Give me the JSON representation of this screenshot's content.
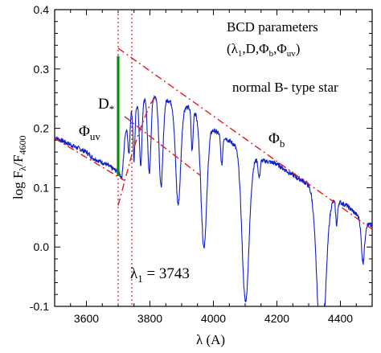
{
  "chart_data": {
    "type": "line",
    "title": "",
    "xlabel_symbol": "λ",
    "xlabel_unit": "(A)",
    "ylabel_text": "log F",
    "ylabel_sub1": "λ",
    "ylabel_mid": "/F",
    "ylabel_sub2": "4600",
    "xlim": [
      3500,
      4500
    ],
    "ylim": [
      -0.1,
      0.4
    ],
    "xticks": [
      3600,
      3800,
      4000,
      4200,
      4400
    ],
    "xtick_minor_step": 50,
    "yticks": [
      -0.1,
      0.0,
      0.1,
      0.2,
      0.3,
      0.4
    ],
    "ytick_minor_step": 0.02,
    "ytick_labels": [
      "-0.1",
      "0.0",
      "0.1",
      "0.2",
      "0.3",
      "0.4"
    ],
    "colors": {
      "spectrum": "#1020c8",
      "fit": "#e41a1c",
      "marker": "#d42020",
      "jump": "#108a10",
      "axis": "#000000"
    },
    "series": [
      {
        "role": "spectrum",
        "x": [
          3500,
          3520,
          3540,
          3560,
          3580,
          3600,
          3620,
          3640,
          3660,
          3680,
          3695,
          3705,
          3712,
          3722,
          3740,
          3760,
          3780,
          3800,
          3820,
          3840,
          3860,
          3880,
          3900,
          3920,
          3940,
          3960,
          3980,
          4000,
          4020,
          4040,
          4060,
          4080,
          4100,
          4120,
          4140,
          4160,
          4180,
          4200,
          4220,
          4240,
          4260,
          4280,
          4300,
          4320,
          4340,
          4360,
          4380,
          4400,
          4420,
          4440,
          4460,
          4480,
          4500
        ],
        "y": [
          0.185,
          0.18,
          0.175,
          0.17,
          0.165,
          0.16,
          0.15,
          0.145,
          0.14,
          0.133,
          0.128,
          0.123,
          0.115,
          0.19,
          0.23,
          0.24,
          0.25,
          0.255,
          0.255,
          0.25,
          0.247,
          0.243,
          0.24,
          0.235,
          0.23,
          0.215,
          0.205,
          0.197,
          0.19,
          0.183,
          0.175,
          0.17,
          0.158,
          0.152,
          0.147,
          0.145,
          0.143,
          0.14,
          0.132,
          0.125,
          0.118,
          0.112,
          0.105,
          0.095,
          0.09,
          0.085,
          0.08,
          0.075,
          0.07,
          0.06,
          0.05,
          0.04,
          0.035
        ]
      },
      {
        "role": "absorption-lines",
        "lines": [
          {
            "x": 3734,
            "depth": 0.06,
            "width": 3
          },
          {
            "x": 3750,
            "depth": 0.09,
            "width": 3
          },
          {
            "x": 3771,
            "depth": 0.11,
            "width": 4
          },
          {
            "x": 3798,
            "depth": 0.13,
            "width": 5
          },
          {
            "x": 3835,
            "depth": 0.15,
            "width": 6
          },
          {
            "x": 3889,
            "depth": 0.17,
            "width": 8
          },
          {
            "x": 3933,
            "depth": 0.07,
            "width": 3
          },
          {
            "x": 3970,
            "depth": 0.21,
            "width": 9
          },
          {
            "x": 4026,
            "depth": 0.05,
            "width": 3
          },
          {
            "x": 4101,
            "depth": 0.25,
            "width": 11
          },
          {
            "x": 4144,
            "depth": 0.03,
            "width": 3
          },
          {
            "x": 4340,
            "depth": 0.28,
            "width": 13
          },
          {
            "x": 4388,
            "depth": 0.04,
            "width": 3
          },
          {
            "x": 4471,
            "depth": 0.07,
            "width": 5
          }
        ]
      },
      {
        "role": "paschen-fit",
        "x": [
          3500,
          3720
        ],
        "y": [
          0.183,
          0.112
        ]
      },
      {
        "role": "balmer-continuum-fit",
        "x": [
          3700,
          4500
        ],
        "y": [
          0.335,
          0.03
        ]
      },
      {
        "role": "lower-line",
        "x": [
          3720,
          3960
        ],
        "y": [
          0.22,
          0.12
        ]
      },
      {
        "role": "jump-envelope",
        "x": [
          3700,
          3720,
          3745,
          3770,
          3800,
          3820
        ],
        "y": [
          0.07,
          0.11,
          0.16,
          0.2,
          0.24,
          0.255
        ]
      }
    ],
    "vertical_markers": [
      {
        "name": "lambda-ref-line",
        "x": 3700
      },
      {
        "name": "lambda1-line",
        "x": 3743
      }
    ],
    "jump_bar": {
      "x": 3700,
      "y0": 0.12,
      "y1": 0.322
    }
  },
  "annotations": {
    "bcd_title": "BCD parameters",
    "bcd_params_open": "(λ",
    "bcd_params_sub1": "1",
    "bcd_params_mid": ",D,Φ",
    "bcd_params_sub2": "b",
    "bcd_params_sep": ",Φ",
    "bcd_params_sub3": "uv",
    "bcd_params_close": ")",
    "star_type": "normal B- type star",
    "d_star_main": "D",
    "d_star_sub": "*",
    "phi_uv_main": "Φ",
    "phi_uv_sub": "uv",
    "phi_b_main": "Φ",
    "phi_b_sub": "b",
    "lambda1_main": "λ",
    "lambda1_sub": "1",
    "lambda1_value": " = 3743"
  }
}
